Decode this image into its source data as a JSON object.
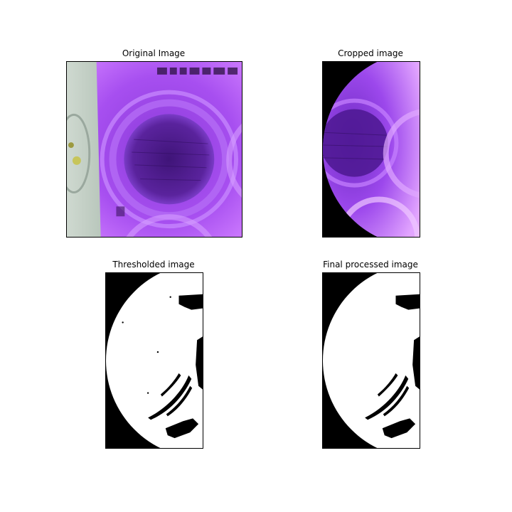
{
  "figure": {
    "panels": [
      {
        "title": "Original Image"
      },
      {
        "title": "Cropped image"
      },
      {
        "title": "Thresholded image"
      },
      {
        "title": "Final processed image"
      }
    ],
    "colors": {
      "purple_dark": "#4b1a8a",
      "purple_mid": "#9b44e6",
      "purple_light": "#d89cff",
      "greenish": "#c9d6cc",
      "black": "#000000",
      "white": "#ffffff"
    }
  }
}
